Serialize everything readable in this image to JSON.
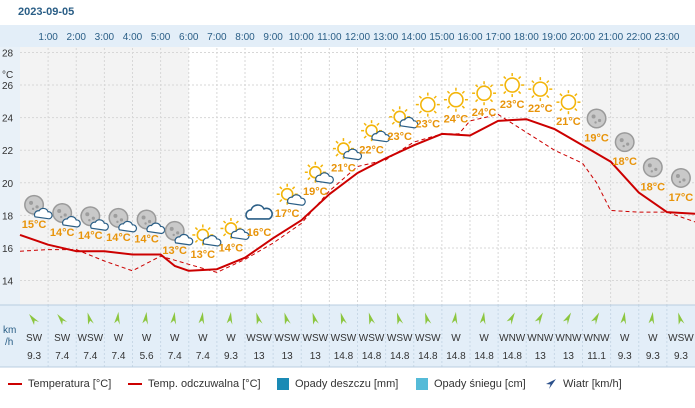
{
  "date": "2023-09-05",
  "chart_data": {
    "type": "line",
    "hours": [
      "1:00",
      "2:00",
      "3:00",
      "4:00",
      "5:00",
      "6:00",
      "7:00",
      "8:00",
      "9:00",
      "10:00",
      "11:00",
      "12:00",
      "13:00",
      "14:00",
      "15:00",
      "16:00",
      "17:00",
      "18:00",
      "19:00",
      "20:00",
      "21:00",
      "22:00",
      "23:00"
    ],
    "y_unit": "°C",
    "yticks": [
      14,
      16,
      18,
      20,
      22,
      24,
      26,
      28
    ],
    "ylim": [
      12.5,
      29.5
    ],
    "series": [
      {
        "name": "Temperatura [°C]",
        "color": "#cc0000",
        "style": "solid",
        "x": [
          0,
          1,
          2,
          3,
          4,
          5,
          5.5,
          6,
          7,
          8,
          9,
          10,
          11,
          12,
          13,
          14,
          15,
          16,
          17,
          18,
          19,
          20,
          21,
          22,
          23,
          24
        ],
        "values": [
          16.8,
          16.2,
          15.8,
          15.8,
          15.6,
          15.6,
          14.9,
          14.6,
          14.7,
          15.4,
          16.6,
          17.7,
          19.3,
          20.6,
          21.5,
          22.3,
          23.0,
          22.9,
          23.8,
          23.9,
          23.3,
          22.3,
          21.3,
          19.4,
          18.2,
          18.1
        ]
      },
      {
        "name": "Temp. odczuwalna [°C]",
        "color": "#cc0000",
        "style": "dashed",
        "x": [
          0,
          1,
          2,
          3,
          4,
          5,
          6,
          7,
          8,
          9,
          10,
          11,
          12,
          13,
          14,
          15,
          15.6,
          16,
          17,
          18,
          19,
          20,
          20.5,
          21,
          22,
          23,
          24
        ],
        "values": [
          15.8,
          15.9,
          15.9,
          15.2,
          14.6,
          15.5,
          15.0,
          14.5,
          15.3,
          16.3,
          17.5,
          19.5,
          21.0,
          21.4,
          22.5,
          23.0,
          23.0,
          23.8,
          24.2,
          23.1,
          22.0,
          21.2,
          20.0,
          18.3,
          18.2,
          18.2,
          17.6
        ]
      }
    ],
    "temp_labels": [
      "15°C",
      "14°C",
      "14°C",
      "14°C",
      "14°C",
      "13°C",
      "13°C",
      "14°C",
      "16°C",
      "17°C",
      "19°C",
      "21°C",
      "22°C",
      "23°C",
      "23°C",
      "24°C",
      "24°C",
      "23°C",
      "22°C",
      "21°C",
      "19°C",
      "18°C",
      "18°C",
      "17°C"
    ],
    "weather_icons": [
      "moon-cloud-icon",
      "moon-cloud-icon",
      "moon-cloud-icon",
      "moon-cloud-icon",
      "moon-cloud-icon",
      "moon-cloud-icon",
      "sun-cloud-icon",
      "sun-cloud-icon",
      "cloud-icon",
      "sun-cloud-icon",
      "sun-cloud-icon",
      "sun-cloud-icon",
      "sun-cloud-icon",
      "sun-cloud-icon",
      "sun-icon",
      "sun-icon",
      "sun-icon",
      "sun-icon",
      "sun-icon",
      "sun-icon",
      "moon-icon",
      "moon-icon",
      "moon-icon",
      "moon-icon"
    ],
    "wind_unit": "km /h",
    "wind_directions": [
      "SW",
      "SW",
      "WSW",
      "W",
      "W",
      "W",
      "W",
      "W",
      "WSW",
      "WSW",
      "WSW",
      "WSW",
      "WSW",
      "WSW",
      "WSW",
      "W",
      "W",
      "WNW",
      "WNW",
      "WNW",
      "WNW",
      "W",
      "W",
      "WSW"
    ],
    "wind_speeds": [
      "9.3",
      "7.4",
      "7.4",
      "7.4",
      "5.6",
      "7.4",
      "7.4",
      "9.3",
      "13",
      "13",
      "13",
      "14.8",
      "14.8",
      "14.8",
      "14.8",
      "14.8",
      "14.8",
      "14.8",
      "13",
      "13",
      "11.1",
      "9.3",
      "9.3",
      "9.3"
    ],
    "legend": [
      "Temperatura [°C]",
      "Temp. odczuwalna [°C]",
      "Opady deszczu [mm]",
      "Opady śniegu [cm]",
      "Wiatr [km/h]"
    ],
    "colors": {
      "temp": "#cc0000",
      "rain": "#1a8ab5",
      "snow": "#55bbd8",
      "wind": "#2a4f8a",
      "night": "#f3f3f3",
      "header": "#e3eef8",
      "wind_arrow": "#8cc63f",
      "label": "#e8940a"
    }
  }
}
